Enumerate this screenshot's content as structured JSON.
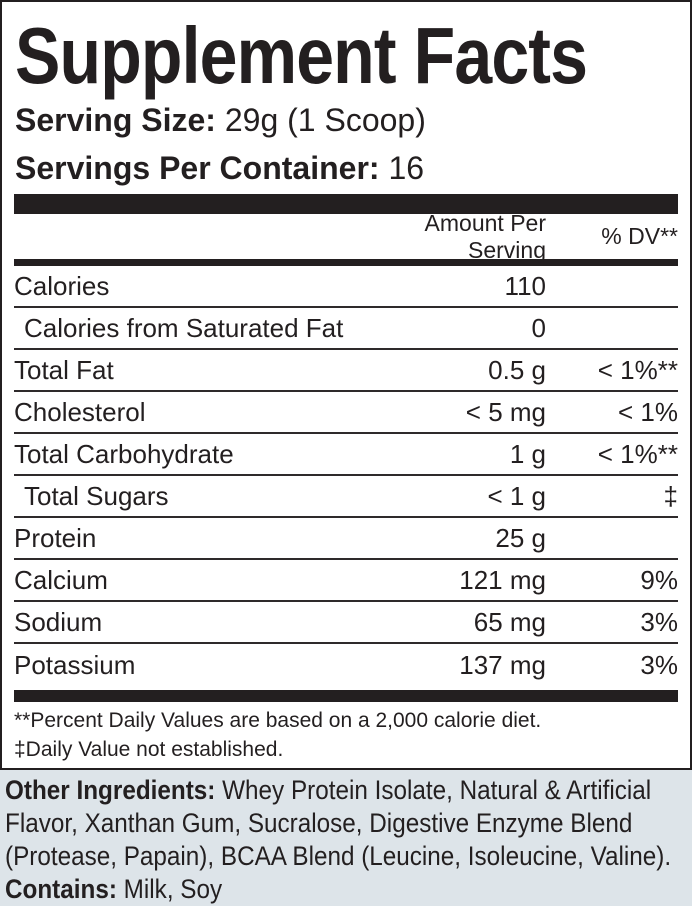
{
  "panel": {
    "title": "Supplement Facts",
    "serving_size": {
      "label": "Serving Size:",
      "value": "29g (1 Scoop)"
    },
    "servings_per_container": {
      "label": "Servings Per Container:",
      "value": "16"
    },
    "table": {
      "header": {
        "amount": "Amount Per Serving",
        "dv": "% DV**"
      },
      "rows": [
        {
          "name": "Calories",
          "amount": "110",
          "dv": "",
          "indent": false
        },
        {
          "name": "Calories from Saturated Fat",
          "amount": "0",
          "dv": "",
          "indent": true
        },
        {
          "name": "Total Fat",
          "amount": "0.5 g",
          "dv": "< 1%**",
          "indent": false
        },
        {
          "name": "Cholesterol",
          "amount": "< 5 mg",
          "dv": "< 1%",
          "indent": false
        },
        {
          "name": "Total Carbohydrate",
          "amount": "1 g",
          "dv": "< 1%**",
          "indent": false
        },
        {
          "name": "Total Sugars",
          "amount": "< 1 g",
          "dv": "‡",
          "indent": true
        },
        {
          "name": "Protein",
          "amount": "25 g",
          "dv": "",
          "indent": false
        },
        {
          "name": "Calcium",
          "amount": "121 mg",
          "dv": "9%",
          "indent": false
        },
        {
          "name": "Sodium",
          "amount": "65 mg",
          "dv": "3%",
          "indent": false
        },
        {
          "name": "Potassium",
          "amount": "137 mg",
          "dv": "3%",
          "indent": false
        }
      ]
    },
    "footnotes": [
      "**Percent Daily Values are based on a 2,000 calorie diet.",
      "‡Daily Value not established."
    ]
  },
  "bottom": {
    "other_ingredients_label": "Other Ingredients:",
    "other_ingredients_text": "Whey Protein Isolate, Natural & Artificial Flavor, Xanthan Gum, Sucralose, Digestive Enzyme Blend (Protease, Papain), BCAA Blend (Leucine, Isoleucine, Valine).",
    "contains_label": "Contains:",
    "contains_value": "Milk, Soy"
  },
  "colors": {
    "text": "#231f20",
    "panel_border": "#231f20",
    "rule": "#2e2a2b",
    "bottom_background": "#dde4e9"
  }
}
